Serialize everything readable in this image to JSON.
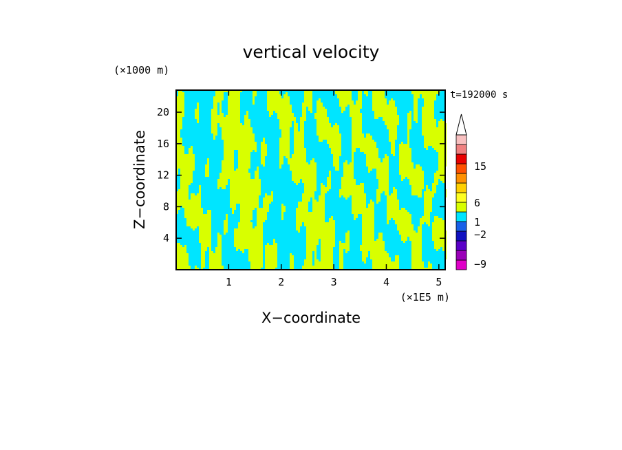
{
  "chart_data": {
    "type": "heatmap",
    "title": "vertical velocity",
    "xlabel": "X−coordinate",
    "ylabel": "Z−coordinate",
    "x_unit": "(×1E5 m)",
    "y_unit": "(×1000 m)",
    "time_label": "t=192000 s",
    "xlim": [
      0,
      5.12
    ],
    "ylim": [
      0,
      22.8
    ],
    "x_ticks": [
      1,
      2,
      3,
      4,
      5
    ],
    "y_ticks": [
      4,
      8,
      12,
      16,
      20
    ],
    "colorbar": {
      "levels": [
        -9,
        -2,
        1,
        6,
        15
      ],
      "labels": [
        "15",
        "6",
        "1",
        "−2",
        "−9"
      ],
      "colors": [
        "#e000c8",
        "#9a00b8",
        "#5a00c8",
        "#1010c0",
        "#1860e8",
        "#00e5ff",
        "#d8ff00",
        "#ffff20",
        "#ffd000",
        "#ff9000",
        "#ff5000",
        "#e80000",
        "#f08080",
        "#f8c0c0"
      ]
    },
    "dominant_colors": {
      "positive": "#d8ff00",
      "negative": "#00e5ff"
    }
  }
}
